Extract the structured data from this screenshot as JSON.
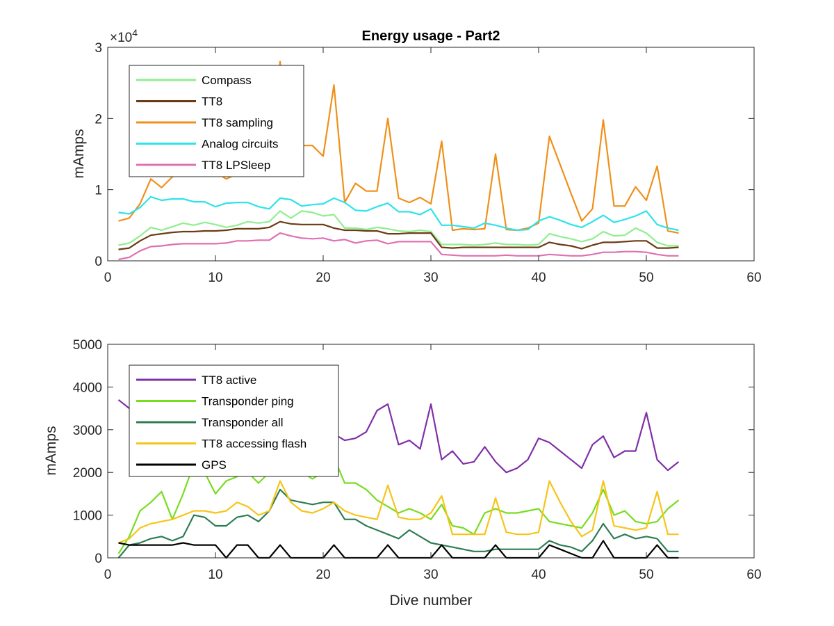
{
  "chart_data": [
    {
      "type": "line",
      "title": "Energy usage - Part2",
      "xlabel": "",
      "ylabel": "mAmps",
      "exponent_label": "×10",
      "exponent_power": "4",
      "xlim": [
        0,
        60
      ],
      "ylim": [
        0,
        30000
      ],
      "xticks": [
        0,
        10,
        20,
        30,
        40,
        50,
        60
      ],
      "xtick_labels": [
        "0",
        "10",
        "20",
        "30",
        "40",
        "50",
        "60"
      ],
      "yticks": [
        0,
        10000,
        20000,
        30000
      ],
      "ytick_labels": [
        "0",
        "1",
        "2",
        "3"
      ],
      "legend_position": "top-left",
      "x": [
        1,
        2,
        3,
        4,
        5,
        6,
        7,
        8,
        9,
        10,
        11,
        12,
        13,
        14,
        15,
        16,
        17,
        18,
        19,
        20,
        21,
        22,
        23,
        24,
        25,
        26,
        27,
        28,
        29,
        30,
        31,
        32,
        33,
        34,
        35,
        36,
        37,
        38,
        39,
        40,
        41,
        42,
        43,
        44,
        45,
        46,
        47,
        48,
        49,
        50,
        51,
        52,
        53
      ],
      "series": [
        {
          "name": "Compass",
          "color": "#90ee90",
          "values": [
            2200,
            2500,
            3500,
            4700,
            4300,
            4800,
            5300,
            5000,
            5400,
            5100,
            4700,
            5000,
            5500,
            5300,
            5500,
            7000,
            6000,
            7000,
            6800,
            6300,
            6500,
            4600,
            4600,
            4400,
            4700,
            4500,
            4200,
            4100,
            4300,
            4100,
            2300,
            2300,
            2300,
            2200,
            2300,
            2500,
            2300,
            2300,
            2200,
            2300,
            3800,
            3400,
            3100,
            2700,
            3100,
            4100,
            3500,
            3600,
            4600,
            3900,
            2600,
            2100,
            2100
          ]
        },
        {
          "name": "TT8",
          "color": "#6b3b14",
          "values": [
            1600,
            1800,
            2800,
            3600,
            3800,
            4000,
            4100,
            4100,
            4200,
            4200,
            4300,
            4500,
            4500,
            4500,
            4700,
            5500,
            5200,
            5100,
            5100,
            5100,
            4600,
            4300,
            4300,
            4200,
            4200,
            3800,
            3800,
            3900,
            3900,
            3900,
            1900,
            1800,
            1900,
            1900,
            1900,
            1900,
            1900,
            1900,
            1900,
            1900,
            2600,
            2300,
            2100,
            1700,
            2200,
            2600,
            2600,
            2700,
            2800,
            2800,
            1800,
            1800,
            1900
          ]
        },
        {
          "name": "TT8 sampling",
          "color": "#f0901a",
          "values": [
            5600,
            6000,
            8000,
            11500,
            10300,
            11800,
            12700,
            12300,
            12800,
            12500,
            11500,
            12200,
            12600,
            12300,
            12500,
            28000,
            13500,
            16200,
            16200,
            14700,
            24700,
            8200,
            10900,
            9800,
            9800,
            20000,
            8800,
            8200,
            8900,
            8000,
            16800,
            4300,
            4500,
            4400,
            4500,
            15000,
            4400,
            4300,
            4600,
            5300,
            17500,
            13500,
            9500,
            5600,
            7300,
            19800,
            7700,
            7700,
            10400,
            8500,
            13300,
            4200,
            3900
          ]
        },
        {
          "name": "Analog circuits",
          "color": "#2ee3ea",
          "values": [
            6800,
            6600,
            7500,
            9000,
            8500,
            8700,
            8700,
            8300,
            8300,
            7600,
            8100,
            8200,
            8200,
            7600,
            7300,
            8800,
            8600,
            7700,
            7900,
            8000,
            8800,
            8200,
            7100,
            7000,
            7600,
            8100,
            6900,
            6900,
            6500,
            7300,
            5000,
            5000,
            4800,
            4600,
            5300,
            5000,
            4600,
            4300,
            4400,
            5600,
            6200,
            5700,
            5100,
            4700,
            5500,
            6400,
            5400,
            5800,
            6300,
            7000,
            5100,
            4600,
            4300
          ]
        },
        {
          "name": "TT8 LPSleep",
          "color": "#e070b0",
          "values": [
            200,
            500,
            1400,
            2000,
            2100,
            2300,
            2400,
            2400,
            2400,
            2400,
            2500,
            2800,
            2800,
            2900,
            2900,
            3900,
            3500,
            3200,
            3100,
            3200,
            2800,
            3000,
            2500,
            2800,
            2900,
            2400,
            2700,
            2700,
            2700,
            2700,
            900,
            800,
            700,
            700,
            700,
            700,
            800,
            700,
            700,
            700,
            900,
            800,
            700,
            700,
            900,
            1200,
            1200,
            1300,
            1300,
            1200,
            900,
            700,
            700
          ]
        }
      ]
    },
    {
      "type": "line",
      "title": "",
      "xlabel": "Dive number",
      "ylabel": "mAmps",
      "xlim": [
        0,
        60
      ],
      "ylim": [
        0,
        5000
      ],
      "xticks": [
        0,
        10,
        20,
        30,
        40,
        50,
        60
      ],
      "xtick_labels": [
        "0",
        "10",
        "20",
        "30",
        "40",
        "50",
        "60"
      ],
      "yticks": [
        0,
        1000,
        2000,
        3000,
        4000,
        5000
      ],
      "ytick_labels": [
        "0",
        "1000",
        "2000",
        "3000",
        "4000",
        "5000"
      ],
      "legend_position": "top-left",
      "x": [
        1,
        2,
        3,
        4,
        5,
        6,
        7,
        8,
        9,
        10,
        11,
        12,
        13,
        14,
        15,
        16,
        17,
        18,
        19,
        20,
        21,
        22,
        23,
        24,
        25,
        26,
        27,
        28,
        29,
        30,
        31,
        32,
        33,
        34,
        35,
        36,
        37,
        38,
        39,
        40,
        41,
        42,
        43,
        44,
        45,
        46,
        47,
        48,
        49,
        50,
        51,
        52,
        53
      ],
      "series": [
        {
          "name": "TT8 active",
          "color": "#7f2fa8",
          "values": [
            3700,
            3500,
            3400,
            3600,
            3500,
            3400,
            3300,
            3300,
            3200,
            3200,
            3100,
            3100,
            3100,
            3100,
            3100,
            3100,
            3000,
            2900,
            2900,
            2900,
            2900,
            2750,
            2800,
            2950,
            3450,
            3600,
            2650,
            2750,
            2550,
            3600,
            2300,
            2500,
            2200,
            2250,
            2600,
            2250,
            2000,
            2100,
            2300,
            2800,
            2700,
            2500,
            2300,
            2100,
            2650,
            2850,
            2350,
            2500,
            2500,
            3400,
            2300,
            2050,
            2250
          ]
        },
        {
          "name": "Transponder ping",
          "color": "#77dd1f",
          "values": [
            100,
            500,
            1100,
            1300,
            1550,
            900,
            1500,
            2200,
            2000,
            1500,
            1800,
            1900,
            2000,
            1750,
            2000,
            2300,
            2100,
            2000,
            1850,
            2000,
            2350,
            1750,
            1750,
            1600,
            1350,
            1200,
            1050,
            1150,
            1050,
            900,
            1250,
            750,
            700,
            550,
            1050,
            1150,
            1050,
            1050,
            1100,
            1150,
            850,
            800,
            750,
            700,
            1050,
            1600,
            1000,
            1100,
            850,
            800,
            850,
            1150,
            1350
          ]
        },
        {
          "name": "Transponder all",
          "color": "#2e7d52",
          "values": [
            0,
            300,
            350,
            450,
            500,
            400,
            500,
            1000,
            950,
            750,
            750,
            950,
            1000,
            850,
            1100,
            1600,
            1350,
            1300,
            1250,
            1300,
            1300,
            900,
            900,
            750,
            650,
            550,
            450,
            650,
            500,
            350,
            300,
            250,
            200,
            150,
            150,
            200,
            200,
            200,
            200,
            200,
            400,
            300,
            250,
            150,
            400,
            800,
            450,
            550,
            450,
            500,
            450,
            150,
            150
          ]
        },
        {
          "name": "TT8 accessing flash",
          "color": "#f5c518",
          "values": [
            350,
            450,
            700,
            800,
            850,
            900,
            1000,
            1100,
            1100,
            1050,
            1100,
            1300,
            1200,
            1000,
            1100,
            1800,
            1300,
            1100,
            1050,
            1150,
            1300,
            1100,
            1000,
            950,
            900,
            1700,
            950,
            900,
            900,
            1050,
            1450,
            550,
            550,
            550,
            550,
            1400,
            600,
            550,
            550,
            600,
            1800,
            1300,
            850,
            500,
            650,
            1800,
            750,
            700,
            650,
            700,
            1550,
            550,
            550
          ]
        },
        {
          "name": "GPS",
          "color": "#000000",
          "values": [
            350,
            300,
            300,
            300,
            300,
            300,
            350,
            300,
            300,
            300,
            0,
            300,
            300,
            0,
            0,
            300,
            0,
            0,
            0,
            0,
            300,
            0,
            0,
            0,
            0,
            300,
            0,
            0,
            0,
            0,
            300,
            0,
            0,
            0,
            0,
            300,
            0,
            0,
            0,
            0,
            300,
            200,
            100,
            0,
            0,
            400,
            0,
            0,
            0,
            0,
            300,
            0,
            0
          ]
        }
      ]
    }
  ]
}
